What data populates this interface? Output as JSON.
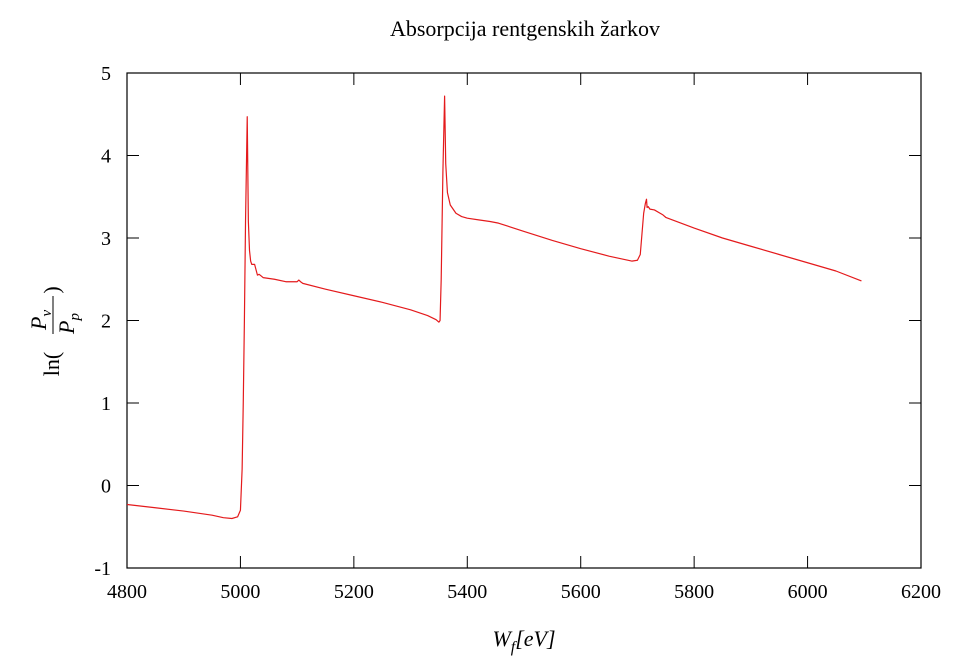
{
  "chart_data": {
    "type": "line",
    "title": "Absorpcija rentgenskih žarkov",
    "xlabel_base": "W",
    "xlabel_sub": "f",
    "xlabel_unit": "[eV]",
    "ylabel_fn": "ln(",
    "ylabel_num": "P",
    "ylabel_num_sub": "v",
    "ylabel_den": "P",
    "ylabel_den_sub": "p",
    "ylabel_close": ")",
    "xlim": [
      4800,
      6200
    ],
    "ylim": [
      -1,
      5
    ],
    "xticks": [
      4800,
      5000,
      5200,
      5400,
      5600,
      5800,
      6000,
      6200
    ],
    "yticks": [
      -1,
      0,
      1,
      2,
      3,
      4,
      5
    ],
    "grid": false,
    "color": "#e41a1c",
    "series": [
      {
        "x": [
          4800,
          4850,
          4900,
          4950,
          4970,
          4985,
          4995,
          5000,
          5003,
          5005,
          5007,
          5009,
          5012,
          5014,
          5016,
          5018,
          5020,
          5025,
          5030,
          5033,
          5040,
          5060,
          5080,
          5100,
          5103,
          5106,
          5110,
          5150,
          5200,
          5250,
          5300,
          5330,
          5345,
          5350,
          5352,
          5354,
          5357,
          5360,
          5362,
          5365,
          5370,
          5375,
          5380,
          5390,
          5400,
          5420,
          5440,
          5455,
          5500,
          5550,
          5600,
          5650,
          5690,
          5700,
          5705,
          5708,
          5711,
          5714,
          5716,
          5717,
          5719,
          5722,
          5730,
          5740,
          5745,
          5750,
          5800,
          5850,
          5900,
          5950,
          6000,
          6050,
          6095
        ],
        "y": [
          -0.23,
          -0.27,
          -0.31,
          -0.36,
          -0.39,
          -0.4,
          -0.38,
          -0.3,
          0.2,
          1.0,
          2.0,
          3.2,
          4.47,
          3.2,
          2.85,
          2.72,
          2.68,
          2.68,
          2.55,
          2.56,
          2.52,
          2.5,
          2.47,
          2.47,
          2.49,
          2.47,
          2.45,
          2.38,
          2.3,
          2.22,
          2.13,
          2.06,
          2.01,
          1.98,
          2.0,
          2.5,
          3.8,
          4.72,
          3.9,
          3.55,
          3.4,
          3.35,
          3.3,
          3.26,
          3.24,
          3.22,
          3.2,
          3.18,
          3.08,
          2.97,
          2.87,
          2.78,
          2.72,
          2.73,
          2.8,
          3.05,
          3.3,
          3.42,
          3.47,
          3.37,
          3.38,
          3.35,
          3.34,
          3.3,
          3.28,
          3.25,
          3.12,
          3.0,
          2.9,
          2.8,
          2.7,
          2.6,
          2.48
        ]
      }
    ]
  }
}
